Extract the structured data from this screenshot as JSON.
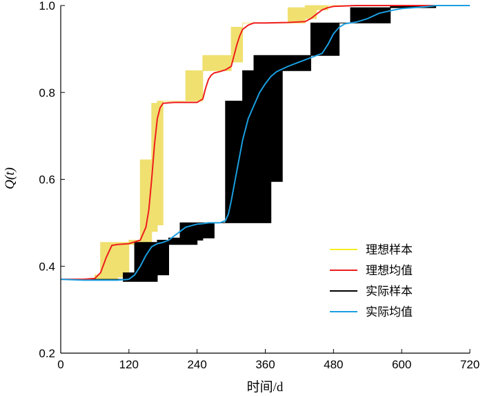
{
  "chart_data": {
    "type": "line",
    "title": "",
    "xlabel": "时间/d",
    "ylabel": "Q(t)",
    "xlim": [
      0,
      720
    ],
    "ylim": [
      0.2,
      1.0
    ],
    "xticks": [
      0,
      120,
      240,
      360,
      480,
      600,
      720
    ],
    "yticks": [
      0.2,
      0.4,
      0.6,
      0.8,
      1.0
    ],
    "ytick_labels": [
      "0.2",
      "0.4",
      "0.6",
      "0.8",
      "1.0"
    ],
    "legend_position": "lower-right",
    "series": [
      {
        "name": "理想样本",
        "color": "#f0e070",
        "style": "band",
        "x": [
          0,
          60,
          60,
          70,
          70,
          100,
          100,
          120,
          120,
          140,
          140,
          160,
          160,
          170,
          170,
          180,
          180,
          220,
          220,
          230,
          230,
          250,
          250,
          280,
          280,
          300,
          300,
          320,
          320,
          340,
          340,
          360,
          360,
          400,
          400,
          430,
          430,
          450,
          450,
          470,
          470,
          500,
          500,
          560,
          560,
          600,
          600,
          720
        ],
        "upper": [
          0.37,
          0.37,
          0.38,
          0.38,
          0.455,
          0.455,
          0.455,
          0.455,
          0.46,
          0.46,
          0.645,
          0.645,
          0.775,
          0.775,
          0.78,
          0.78,
          0.78,
          0.78,
          0.85,
          0.85,
          0.85,
          0.85,
          0.885,
          0.885,
          0.885,
          0.885,
          0.95,
          0.95,
          0.96,
          0.96,
          0.96,
          0.96,
          0.96,
          0.96,
          0.995,
          0.995,
          1.0,
          1.0,
          1.0,
          1.0,
          1.0,
          1.0,
          1.0,
          1.0,
          1.0,
          1.0,
          1.0,
          1.0
        ],
        "lower": [
          0.37,
          0.37,
          0.37,
          0.37,
          0.37,
          0.37,
          0.375,
          0.375,
          0.45,
          0.45,
          0.45,
          0.45,
          0.48,
          0.48,
          0.495,
          0.495,
          0.78,
          0.78,
          0.78,
          0.78,
          0.78,
          0.78,
          0.85,
          0.85,
          0.85,
          0.85,
          0.87,
          0.87,
          0.96,
          0.96,
          0.96,
          0.96,
          0.96,
          0.96,
          0.96,
          0.96,
          0.97,
          0.97,
          0.99,
          0.99,
          1.0,
          1.0,
          1.0,
          1.0,
          1.0,
          1.0,
          1.0,
          1.0
        ]
      },
      {
        "name": "理想均值",
        "color": "#ee1c1c",
        "style": "line",
        "x": [
          0,
          40,
          60,
          70,
          80,
          90,
          100,
          120,
          140,
          150,
          155,
          160,
          165,
          170,
          175,
          180,
          190,
          200,
          220,
          240,
          250,
          255,
          260,
          265,
          270,
          280,
          290,
          300,
          305,
          310,
          315,
          320,
          330,
          340,
          360,
          400,
          430,
          440,
          450,
          460,
          470,
          480,
          500,
          520,
          560,
          600,
          720
        ],
        "y": [
          0.37,
          0.37,
          0.372,
          0.385,
          0.42,
          0.448,
          0.45,
          0.452,
          0.46,
          0.49,
          0.53,
          0.6,
          0.68,
          0.74,
          0.765,
          0.775,
          0.776,
          0.777,
          0.777,
          0.777,
          0.785,
          0.81,
          0.83,
          0.84,
          0.845,
          0.848,
          0.852,
          0.86,
          0.885,
          0.91,
          0.93,
          0.945,
          0.955,
          0.96,
          0.96,
          0.961,
          0.963,
          0.97,
          0.98,
          0.99,
          0.995,
          0.998,
          0.999,
          1.0,
          1.0,
          1.0,
          1.0
        ]
      },
      {
        "name": "实际样本",
        "color": "#000000",
        "style": "band",
        "x": [
          0,
          110,
          110,
          130,
          130,
          150,
          150,
          170,
          170,
          190,
          190,
          210,
          210,
          240,
          240,
          250,
          250,
          270,
          270,
          290,
          290,
          300,
          300,
          320,
          320,
          340,
          340,
          370,
          370,
          390,
          390,
          420,
          420,
          440,
          440,
          470,
          470,
          490,
          490,
          510,
          510,
          530,
          530,
          560,
          560,
          580,
          580,
          600,
          600,
          640,
          640,
          660,
          660,
          720
        ],
        "upper": [
          0.37,
          0.37,
          0.385,
          0.385,
          0.455,
          0.455,
          0.455,
          0.455,
          0.46,
          0.46,
          0.465,
          0.465,
          0.5,
          0.5,
          0.5,
          0.5,
          0.5,
          0.5,
          0.5,
          0.5,
          0.78,
          0.78,
          0.78,
          0.78,
          0.85,
          0.85,
          0.885,
          0.885,
          0.885,
          0.885,
          0.885,
          0.885,
          0.885,
          0.885,
          0.96,
          0.96,
          0.96,
          0.96,
          0.96,
          0.96,
          0.995,
          0.995,
          0.995,
          0.995,
          0.995,
          0.995,
          1.0,
          1.0,
          1.0,
          1.0,
          1.0,
          1.0,
          1.0,
          1.0
        ],
        "lower": [
          0.37,
          0.37,
          0.365,
          0.365,
          0.365,
          0.365,
          0.365,
          0.365,
          0.38,
          0.38,
          0.45,
          0.45,
          0.45,
          0.45,
          0.46,
          0.46,
          0.465,
          0.465,
          0.5,
          0.5,
          0.5,
          0.5,
          0.5,
          0.5,
          0.5,
          0.5,
          0.5,
          0.5,
          0.595,
          0.595,
          0.85,
          0.85,
          0.85,
          0.85,
          0.885,
          0.885,
          0.885,
          0.885,
          0.96,
          0.96,
          0.96,
          0.96,
          0.96,
          0.96,
          0.96,
          0.96,
          0.995,
          0.995,
          0.995,
          0.995,
          0.995,
          0.995,
          1.0,
          1.0
        ]
      },
      {
        "name": "实际均值",
        "color": "#1a9fe0",
        "style": "line",
        "x": [
          0,
          40,
          80,
          100,
          120,
          130,
          140,
          150,
          160,
          170,
          180,
          190,
          200,
          220,
          240,
          250,
          260,
          270,
          280,
          290,
          295,
          300,
          310,
          320,
          330,
          340,
          350,
          360,
          370,
          380,
          400,
          420,
          430,
          440,
          450,
          460,
          470,
          480,
          490,
          500,
          520,
          540,
          560,
          580,
          600,
          640,
          660,
          720
        ],
        "y": [
          0.37,
          0.368,
          0.368,
          0.368,
          0.37,
          0.38,
          0.4,
          0.425,
          0.445,
          0.452,
          0.455,
          0.46,
          0.47,
          0.49,
          0.497,
          0.498,
          0.5,
          0.5,
          0.5,
          0.505,
          0.52,
          0.55,
          0.62,
          0.69,
          0.74,
          0.77,
          0.8,
          0.82,
          0.837,
          0.848,
          0.86,
          0.87,
          0.875,
          0.88,
          0.885,
          0.89,
          0.91,
          0.935,
          0.95,
          0.958,
          0.962,
          0.97,
          0.982,
          0.988,
          0.993,
          0.997,
          1.0,
          1.0
        ]
      }
    ]
  }
}
